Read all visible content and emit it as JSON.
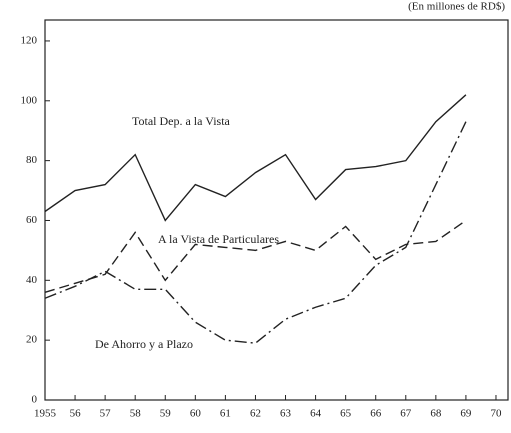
{
  "chart_data": {
    "type": "line",
    "subtitle": "(En millones de RD$)",
    "x": [
      1955,
      1956,
      1957,
      1958,
      1959,
      1960,
      1961,
      1962,
      1963,
      1964,
      1965,
      1966,
      1967,
      1968,
      1969
    ],
    "series": [
      {
        "name": "Total Dep. a la Vista",
        "color": "#222222",
        "style": "solid",
        "values": [
          63,
          70,
          72,
          82,
          60,
          72,
          68,
          76,
          82,
          67,
          77,
          78,
          80,
          93,
          102
        ]
      },
      {
        "name": "A la Vista de Particulares",
        "color": "#222222",
        "style": "dashed",
        "values": [
          36,
          39,
          42,
          56,
          40,
          52,
          51,
          50,
          53,
          50,
          58,
          47,
          52,
          53,
          60
        ]
      },
      {
        "name": "De Ahorro y a Plazo",
        "color": "#222222",
        "style": "dashdot",
        "values": [
          34,
          38,
          43,
          37,
          37,
          26,
          20,
          19,
          27,
          31,
          34,
          45,
          51,
          72,
          93
        ]
      }
    ],
    "xlim": [
      1955,
      1970.4
    ],
    "ylim": [
      0,
      127
    ],
    "xticks": [
      1955,
      {
        "value": 1956,
        "label": "56"
      },
      {
        "value": 1957,
        "label": "57"
      },
      {
        "value": 1958,
        "label": "58"
      },
      {
        "value": 1959,
        "label": "59"
      },
      {
        "value": 1960,
        "label": "60"
      },
      {
        "value": 1961,
        "label": "61"
      },
      {
        "value": 1962,
        "label": "62"
      },
      {
        "value": 1963,
        "label": "63"
      },
      {
        "value": 1964,
        "label": "64"
      },
      {
        "value": 1965,
        "label": "65"
      },
      {
        "value": 1966,
        "label": "66"
      },
      {
        "value": 1967,
        "label": "67"
      },
      {
        "value": 1968,
        "label": "68"
      },
      {
        "value": 1969,
        "label": "69"
      },
      {
        "value": 1970,
        "label": "70"
      }
    ],
    "yticks": [
      0,
      20,
      40,
      60,
      80,
      100,
      120
    ],
    "grid": false
  }
}
